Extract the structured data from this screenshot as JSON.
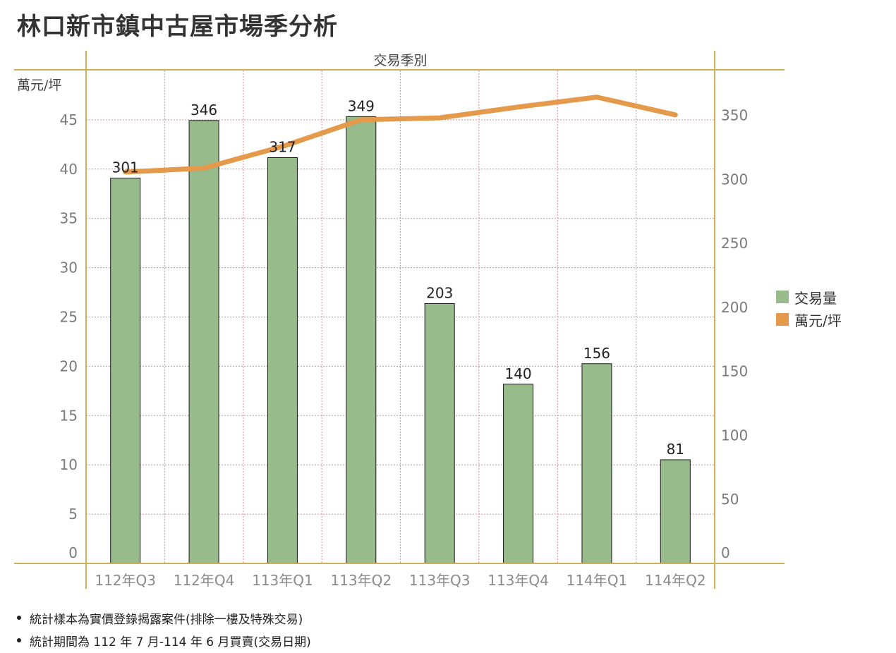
{
  "title": "林口新市鎮中古屋市場季分析",
  "chart_data": {
    "type": "bar",
    "top_axis_label": "交易季別",
    "ylabel_left": "萬元/坪",
    "categories": [
      "112年Q3",
      "112年Q4",
      "113年Q1",
      "113年Q2",
      "113年Q3",
      "113年Q4",
      "114年Q1",
      "114年Q2"
    ],
    "ylim_left": [
      0,
      50
    ],
    "yticks_left": [
      0,
      5,
      10,
      15,
      20,
      25,
      30,
      35,
      40,
      45
    ],
    "ylim_right": [
      0,
      385
    ],
    "yticks_right": [
      0,
      50,
      100,
      150,
      200,
      250,
      300,
      350
    ],
    "grid": true,
    "legend_position": "right",
    "series": [
      {
        "name": "交易量",
        "type": "bar",
        "axis": "right",
        "color": "#97bb8a",
        "values": [
          301,
          346,
          317,
          349,
          203,
          140,
          156,
          81
        ]
      },
      {
        "name": "萬元/坪",
        "type": "line",
        "axis": "left",
        "color": "#e5994a",
        "values": [
          39.7,
          40.1,
          42.3,
          45.0,
          45.2,
          46.3,
          47.3,
          45.5
        ]
      }
    ]
  },
  "notes": [
    "統計樣本為實價登錄揭露案件(排除一樓及特殊交易)",
    "統計期間為 112 年 7 月-114 年 6 月買賣(交易日期)"
  ]
}
